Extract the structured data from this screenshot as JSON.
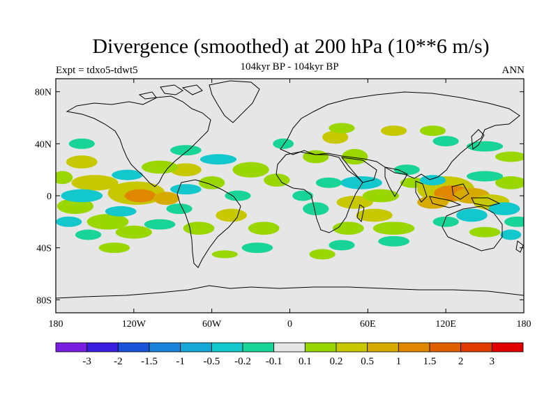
{
  "title": "Divergence (smoothed) at 200 hPa (10**6 m/s)",
  "experiment": "Expt = tdxo5-tdwt5",
  "period": "104kyr BP - 104kyr BP",
  "season": "ANN",
  "lat_labels": [
    "80N",
    "40N",
    "0",
    "40S",
    "80S"
  ],
  "lon_labels": [
    "180",
    "120W",
    "60W",
    "0",
    "60E",
    "120E",
    "180"
  ],
  "colorbar": {
    "colors": [
      "#7a1fe0",
      "#3a1ee0",
      "#1a52d8",
      "#1883d8",
      "#15a8d6",
      "#13c8cc",
      "#18d496",
      "#e6e6e6",
      "#9ad600",
      "#c8c800",
      "#d7aa00",
      "#e08700",
      "#e05f00",
      "#e03a00",
      "#e00000"
    ],
    "labels": [
      "-3",
      "-2",
      "-1.5",
      "-1",
      "-0.5",
      "-0.2",
      "-0.1",
      "0.1",
      "0.2",
      "0.5",
      "1",
      "1.5",
      "2",
      "3"
    ]
  },
  "map_data": {
    "lat_range": [
      -90,
      90
    ],
    "lon_range": [
      -180,
      180
    ],
    "projection": "equirectangular",
    "land_outline_color": "#000000",
    "ocean_background": "#e6e6e6"
  }
}
